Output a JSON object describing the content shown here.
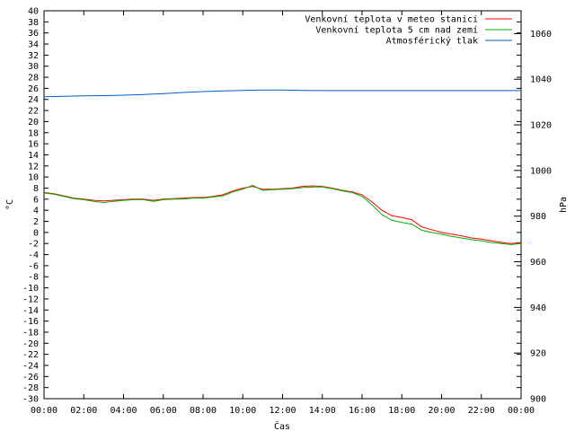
{
  "chart_data": {
    "type": "line",
    "xlabel": "Čas",
    "ylabel": "°C",
    "y2label": "hPa",
    "ylim": [
      -30,
      40
    ],
    "y2lim": [
      900,
      1070
    ],
    "xlim": [
      0,
      24
    ],
    "x_ticks": [
      "00:00",
      "02:00",
      "04:00",
      "06:00",
      "08:00",
      "10:00",
      "12:00",
      "14:00",
      "16:00",
      "18:00",
      "20:00",
      "22:00",
      "00:00"
    ],
    "y_ticks": [
      40,
      38,
      36,
      34,
      32,
      30,
      28,
      26,
      24,
      22,
      20,
      18,
      16,
      14,
      12,
      10,
      8,
      6,
      4,
      2,
      0,
      -2,
      -4,
      -6,
      -8,
      -10,
      -12,
      -14,
      -16,
      -18,
      -20,
      -22,
      -24,
      -26,
      -28,
      -30
    ],
    "y2_ticks": [
      1060,
      1040,
      1020,
      1000,
      980,
      960,
      940,
      920,
      900
    ],
    "legend_position": "top-right",
    "grid": false,
    "series": [
      {
        "name": "Venkovní teplota v meteo stanici",
        "axis": "y",
        "color": "#ff0000",
        "x": [
          0,
          0.5,
          1,
          1.5,
          2,
          2.5,
          3,
          3.5,
          4,
          4.5,
          5,
          5.5,
          6,
          6.5,
          7,
          7.5,
          8,
          8.5,
          9,
          9.5,
          10,
          10.5,
          11,
          11.5,
          12,
          12.5,
          13,
          13.5,
          14,
          14.5,
          15,
          15.5,
          16,
          16.5,
          17,
          17.5,
          18,
          18.5,
          19,
          19.5,
          20,
          20.5,
          21,
          21.5,
          22,
          22.5,
          23,
          23.5,
          24
        ],
        "values": [
          7.2,
          7,
          6.6,
          6.2,
          6,
          5.8,
          5.7,
          5.8,
          5.9,
          6,
          6,
          5.8,
          6,
          6.1,
          6.2,
          6.3,
          6.3,
          6.5,
          6.8,
          7.5,
          8,
          8.3,
          7.8,
          7.8,
          7.9,
          8,
          8.3,
          8.4,
          8.3,
          8,
          7.6,
          7.3,
          6.8,
          5.5,
          4,
          3,
          2.7,
          2.3,
          1,
          0.5,
          0,
          -0.3,
          -0.6,
          -1,
          -1.2,
          -1.5,
          -1.8,
          -2,
          -1.8
        ]
      },
      {
        "name": "Venkovní teplota 5 cm nad zemí",
        "axis": "y",
        "color": "#00b000",
        "x": [
          0,
          0.5,
          1,
          1.5,
          2,
          2.5,
          3,
          3.5,
          4,
          4.5,
          5,
          5.5,
          6,
          6.5,
          7,
          7.5,
          8,
          8.5,
          9,
          9.5,
          10,
          10.5,
          11,
          11.5,
          12,
          12.5,
          13,
          13.5,
          14,
          14.5,
          15,
          15.5,
          16,
          16.5,
          17,
          17.5,
          18,
          18.5,
          19,
          19.5,
          20,
          20.5,
          21,
          21.5,
          22,
          22.5,
          23,
          23.5,
          24
        ],
        "values": [
          7.1,
          6.9,
          6.5,
          6.1,
          5.9,
          5.6,
          5.4,
          5.6,
          5.8,
          5.9,
          5.9,
          5.6,
          5.9,
          6,
          6,
          6.2,
          6.2,
          6.4,
          6.6,
          7.3,
          7.8,
          8.5,
          7.6,
          7.7,
          7.8,
          7.9,
          8.1,
          8.2,
          8.2,
          7.9,
          7.5,
          7.2,
          6.5,
          5,
          3.2,
          2.2,
          1.8,
          1.5,
          0.4,
          0,
          -0.3,
          -0.7,
          -1,
          -1.3,
          -1.5,
          -1.8,
          -2,
          -2.2,
          -2
        ]
      },
      {
        "name": "Atmosférický tlak",
        "axis": "y2",
        "color": "#0060c0",
        "x": [
          0,
          1,
          2,
          3,
          4,
          5,
          6,
          7,
          8,
          9,
          10,
          11,
          12,
          13,
          14,
          15,
          16,
          17,
          18,
          19,
          20,
          21,
          22,
          23,
          24
        ],
        "values": [
          1032.3,
          1032.5,
          1032.7,
          1032.8,
          1033,
          1033.3,
          1033.7,
          1034.2,
          1034.6,
          1034.9,
          1035.1,
          1035.3,
          1035.3,
          1035.1,
          1035,
          1035,
          1035,
          1035,
          1035,
          1035,
          1035,
          1035,
          1035,
          1035,
          1035
        ]
      }
    ]
  }
}
